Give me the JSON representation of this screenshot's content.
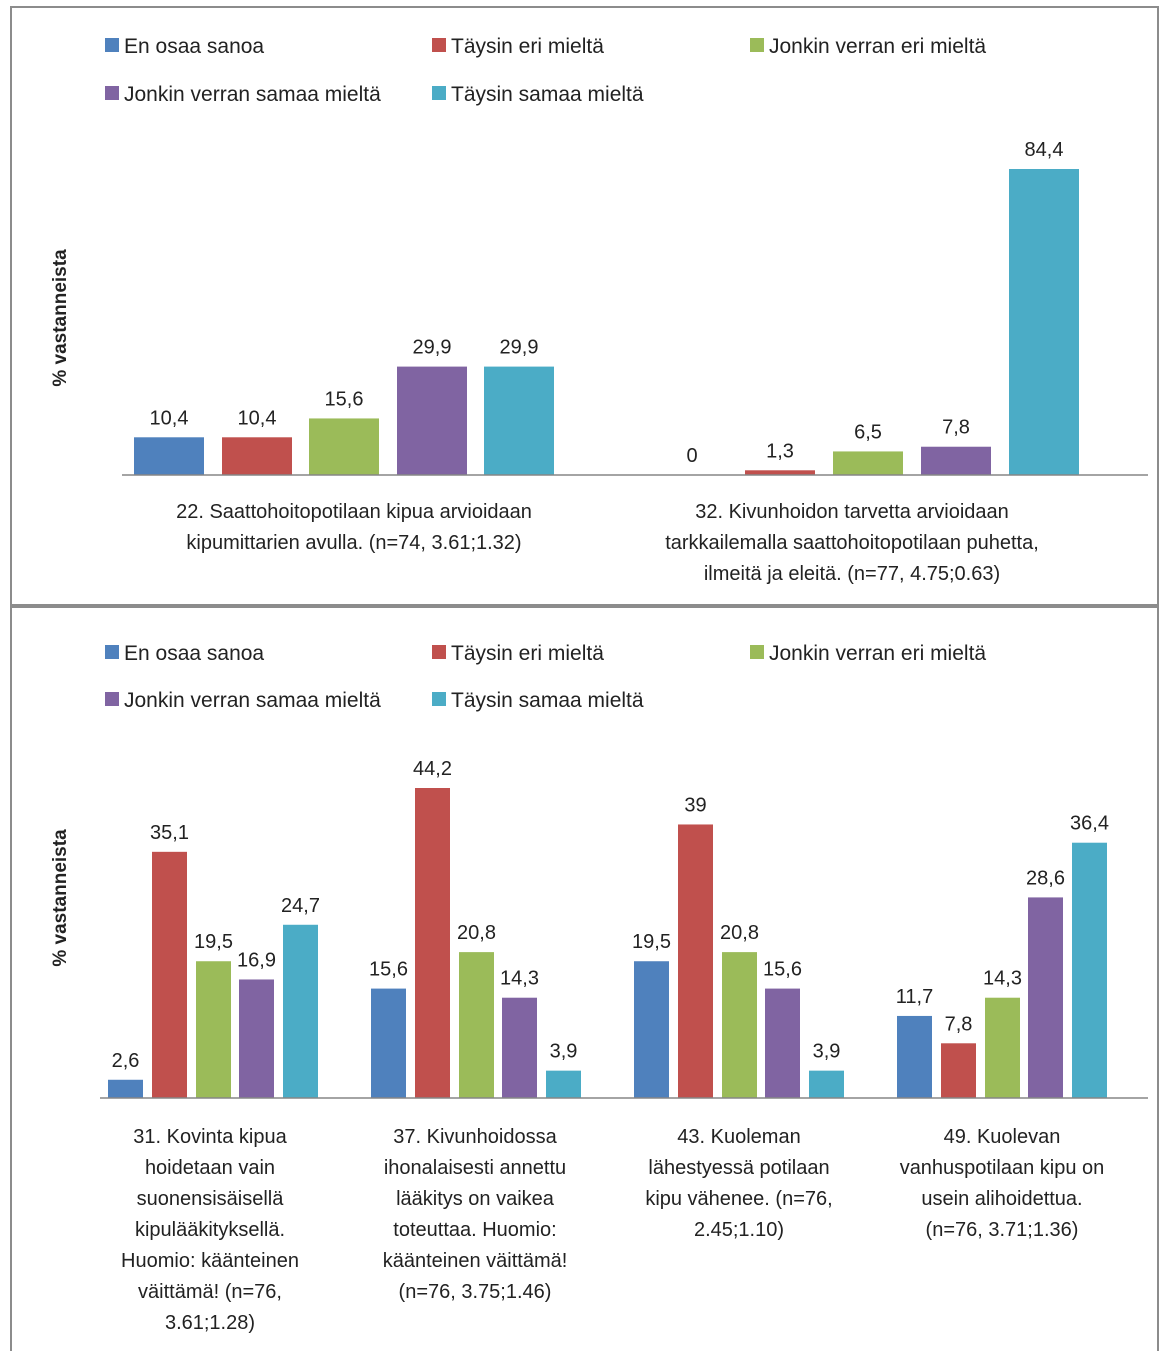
{
  "chart_data": [
    {
      "type": "bar",
      "ylabel": "% vastanneista",
      "legend": [
        "En osaa sanoa",
        "Täysin eri mieltä",
        "Jonkin verran eri mieltä",
        "Jonkin verran samaa mieltä",
        "Täysin samaa mieltä"
      ],
      "colors": [
        "#4f81bd",
        "#c0504d",
        "#9bbb59",
        "#8064a2",
        "#4bacc6"
      ],
      "categories": [
        "22. Saattohoitopotilaan kipua arvioidaan kipumittarien avulla. (n=74, 3.61;1.32)",
        "32. Kivunhoidon tarvetta arvioidaan tarkkailemalla saattohoitopotilaan puhetta, ilmeitä ja eleitä. (n=77, 4.75;0.63)"
      ],
      "category_lines": [
        [
          "22. Saattohoitopotilaan kipua arvioidaan",
          "kipumittarien avulla. (n=74, 3.61;1.32)"
        ],
        [
          "32. Kivunhoidon tarvetta arvioidaan",
          "tarkkailemalla saattohoitopotilaan puhetta,",
          "ilmeitä ja eleitä. (n=77, 4.75;0.63)"
        ]
      ],
      "series": [
        {
          "name": "En osaa sanoa",
          "values": [
            10.4,
            0
          ],
          "labels": [
            "10,4",
            "0"
          ]
        },
        {
          "name": "Täysin eri mieltä",
          "values": [
            10.4,
            1.3
          ],
          "labels": [
            "10,4",
            "1,3"
          ]
        },
        {
          "name": "Jonkin verran eri mieltä",
          "values": [
            15.6,
            6.5
          ],
          "labels": [
            "15,6",
            "6,5"
          ]
        },
        {
          "name": "Jonkin verran samaa mieltä",
          "values": [
            29.9,
            7.8
          ],
          "labels": [
            "29,9",
            "7,8"
          ]
        },
        {
          "name": "Täysin samaa mieltä",
          "values": [
            29.9,
            84.4
          ],
          "labels": [
            "29,9",
            "84,4"
          ]
        }
      ],
      "legend_placement": "top",
      "grid": false
    },
    {
      "type": "bar",
      "ylabel": "% vastanneista",
      "legend": [
        "En osaa sanoa",
        "Täysin eri mieltä",
        "Jonkin verran eri mieltä",
        "Jonkin verran samaa mieltä",
        "Täysin samaa mieltä"
      ],
      "colors": [
        "#4f81bd",
        "#c0504d",
        "#9bbb59",
        "#8064a2",
        "#4bacc6"
      ],
      "categories": [
        "31. Kovinta kipua hoidetaan vain suonensisäisellä kipulääkityksellä. Huomio: käänteinen väittämä! (n=76, 3.61;1.28)",
        "37. Kivunhoidossa ihonalaisesti annettu lääkitys on vaikea toteuttaa. Huomio: käänteinen väittämä! (n=76, 3.75;1.46)",
        "43. Kuoleman lähestyessä potilaan kipu vähenee. (n=76, 2.45;1.10)",
        "49. Kuolevan vanhuspotilaan kipu on usein alihoidettua. (n=76, 3.71;1.36)"
      ],
      "category_lines": [
        [
          "31. Kovinta kipua",
          "hoidetaan vain",
          "suonensisäisellä",
          "kipulääkityksellä.",
          "Huomio: käänteinen",
          "väittämä! (n=76,",
          "3.61;1.28)"
        ],
        [
          "37. Kivunhoidossa",
          "ihonalaisesti annettu",
          "lääkitys on vaikea",
          "toteuttaa. Huomio:",
          "käänteinen väittämä!",
          "(n=76, 3.75;1.46)"
        ],
        [
          "43. Kuoleman",
          "lähestyessä potilaan",
          "kipu vähenee. (n=76,",
          "2.45;1.10)"
        ],
        [
          "49. Kuolevan",
          "vanhuspotilaan kipu on",
          "usein alihoidettua.",
          "(n=76, 3.71;1.36)"
        ]
      ],
      "series": [
        {
          "name": "En osaa sanoa",
          "values": [
            2.6,
            15.6,
            19.5,
            11.7
          ],
          "labels": [
            "2,6",
            "15,6",
            "19,5",
            "11,7"
          ]
        },
        {
          "name": "Täysin eri mieltä",
          "values": [
            35.1,
            44.2,
            39,
            7.8
          ],
          "labels": [
            "35,1",
            "44,2",
            "39",
            "7,8"
          ]
        },
        {
          "name": "Jonkin verran eri mieltä",
          "values": [
            19.5,
            20.8,
            20.8,
            14.3
          ],
          "labels": [
            "19,5",
            "20,8",
            "20,8",
            "14,3"
          ]
        },
        {
          "name": "Jonkin verran samaa mieltä",
          "values": [
            16.9,
            14.3,
            15.6,
            28.6
          ],
          "labels": [
            "16,9",
            "14,3",
            "15,6",
            "28,6"
          ]
        },
        {
          "name": "Täysin samaa mieltä",
          "values": [
            24.7,
            3.9,
            3.9,
            36.4
          ],
          "labels": [
            "24,7",
            "3,9",
            "3,9",
            "36,4"
          ]
        }
      ],
      "legend_placement": "top",
      "grid": false
    }
  ]
}
